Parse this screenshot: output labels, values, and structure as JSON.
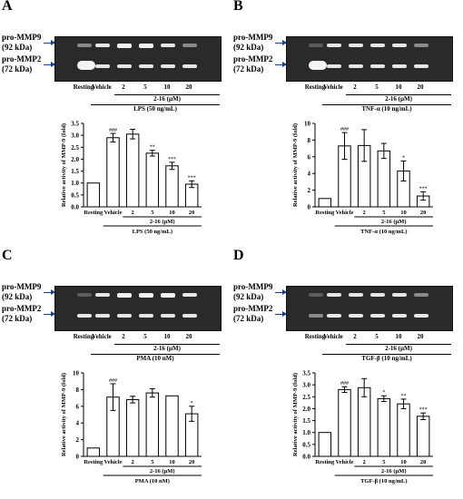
{
  "gel_labels": {
    "mmp9": "pro-MMP9",
    "mmp9_size": "(92 kDa)",
    "mmp2": "pro-MMP2",
    "mmp2_size": "(72 kDa)"
  },
  "conc_label": "2-16 (μM)",
  "lane_labels": [
    "Resting",
    "Vehicle",
    "2",
    "5",
    "10",
    "20"
  ],
  "panels": [
    {
      "letter": "A",
      "stimulus": "LPS (50 ng/mL)",
      "ylabel": "Relative activity of MMP-9 (fold)",
      "mmp9_bands": [
        "weak",
        "normal",
        "strong",
        "strong",
        "normal",
        "weak"
      ],
      "mmp2_bands": [
        "blob",
        "normal",
        "normal",
        "normal",
        "normal",
        "normal"
      ],
      "chart_data": {
        "type": "bar",
        "categories": [
          "Resting",
          "Vehicle",
          "2",
          "5",
          "10",
          "20"
        ],
        "values": [
          1.0,
          2.9,
          3.05,
          2.25,
          1.72,
          0.95
        ],
        "errors": [
          0,
          0.18,
          0.2,
          0.12,
          0.15,
          0.14
        ],
        "significance": [
          "",
          "###",
          "",
          "**",
          "***",
          "***"
        ],
        "ylim": [
          0,
          3.5
        ],
        "yticks": [
          "0.0",
          "0.5",
          "1.0",
          "1.5",
          "2.0",
          "2.5",
          "3.0",
          "3.5"
        ],
        "ylabel": "Relative activity of MMP-9 (fold)",
        "xlabel": "LPS (50 ng/mL)"
      }
    },
    {
      "letter": "B",
      "stimulus": "TNF-α (10 ng/mL)",
      "ylabel": "Relative activity of MMP-9 (fold)",
      "mmp9_bands": [
        "faint",
        "normal",
        "normal",
        "normal",
        "normal",
        "weak"
      ],
      "mmp2_bands": [
        "blob",
        "normal",
        "normal",
        "normal",
        "normal",
        "normal"
      ],
      "chart_data": {
        "type": "bar",
        "categories": [
          "Resting",
          "Vehicle",
          "2",
          "5",
          "10",
          "20"
        ],
        "values": [
          1.0,
          7.3,
          7.35,
          6.7,
          4.3,
          1.3
        ],
        "errors": [
          0,
          1.6,
          1.9,
          0.9,
          1.2,
          0.5
        ],
        "significance": [
          "",
          "###",
          "",
          "",
          "*",
          "***"
        ],
        "ylim": [
          0,
          10
        ],
        "yticks": [
          "0",
          "2",
          "4",
          "6",
          "8",
          "10"
        ],
        "ylabel": "Relative activity of MMP-9 (fold)",
        "xlabel": "TNF-α (10 ng/mL)"
      }
    },
    {
      "letter": "C",
      "stimulus": "PMA (10 nM)",
      "ylabel": "Relative activity of MMP-9 (fold)",
      "mmp9_bands": [
        "faint",
        "normal",
        "strong",
        "strong",
        "strong",
        "normal"
      ],
      "mmp2_bands": [
        "normal",
        "normal",
        "normal",
        "normal",
        "normal",
        "normal"
      ],
      "chart_data": {
        "type": "bar",
        "categories": [
          "Resting",
          "Vehicle",
          "2",
          "5",
          "10",
          "20"
        ],
        "values": [
          1.0,
          7.1,
          6.8,
          7.6,
          7.25,
          5.1
        ],
        "errors": [
          0,
          1.6,
          0.4,
          0.5,
          0,
          0.9
        ],
        "significance": [
          "",
          "###",
          "",
          "",
          "",
          "*"
        ],
        "ylim": [
          0,
          10
        ],
        "yticks": [
          "0",
          "2",
          "4",
          "6",
          "8",
          "10"
        ],
        "ylabel": "Relative activity of MMP-9 (fold)",
        "xlabel": "PMA (10 nM)"
      }
    },
    {
      "letter": "D",
      "stimulus": "TGF-β (10 ng/mL)",
      "ylabel": "Relative activity of MMP-9 (fold)",
      "mmp9_bands": [
        "faint",
        "normal",
        "normal",
        "normal",
        "normal",
        "weak"
      ],
      "mmp2_bands": [
        "weak",
        "normal",
        "normal",
        "normal",
        "normal",
        "normal"
      ],
      "chart_data": {
        "type": "bar",
        "categories": [
          "Resting",
          "Vehicle",
          "2",
          "5",
          "10",
          "20"
        ],
        "values": [
          1.0,
          2.8,
          2.88,
          2.42,
          2.2,
          1.68
        ],
        "errors": [
          0,
          0.12,
          0.38,
          0.12,
          0.2,
          0.14
        ],
        "significance": [
          "",
          "###",
          "",
          "*",
          "**",
          "***"
        ],
        "ylim": [
          0,
          3.5
        ],
        "yticks": [
          "0.0",
          "0.5",
          "1.0",
          "1.5",
          "2.0",
          "2.5",
          "3.0",
          "3.5"
        ],
        "ylabel": "Relative activity of MMP-9 (fold)",
        "xlabel": "TGF-β (10 ng/mL)"
      }
    }
  ]
}
